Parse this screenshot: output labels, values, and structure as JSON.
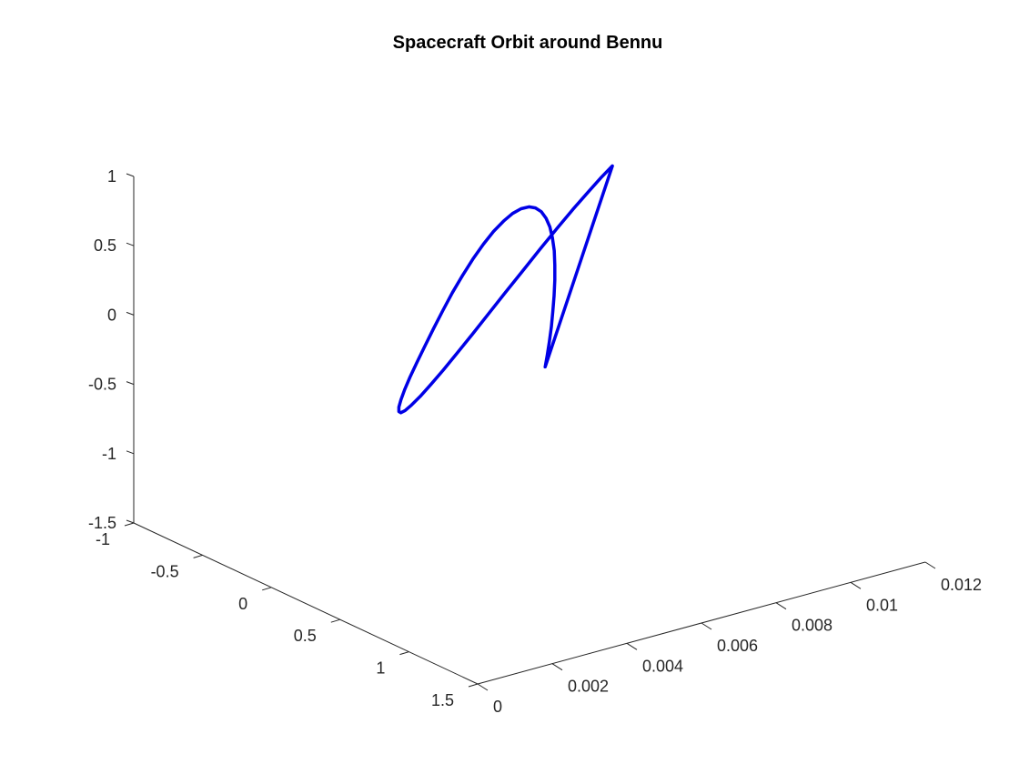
{
  "chart_data": {
    "type": "line",
    "projection": "3d",
    "title": "Spacecraft Orbit around Bennu",
    "xlabel": "",
    "ylabel": "",
    "zlabel": "",
    "grid": false,
    "legend": "none",
    "line_color": "#0000e6",
    "axes": {
      "x": {
        "lim": [
          0,
          0.012
        ],
        "ticks": [
          0,
          0.002,
          0.004,
          0.006,
          0.008,
          0.01,
          0.012
        ],
        "tick_labels": [
          "0",
          "0.002",
          "0.004",
          "0.006",
          "0.008",
          "0.01",
          "0.012"
        ]
      },
      "y": {
        "lim": [
          -1,
          1.5
        ],
        "ticks": [
          -1,
          -0.5,
          0,
          0.5,
          1,
          1.5
        ],
        "tick_labels": [
          "-1",
          "-0.5",
          "0",
          "0.5",
          "1",
          "1.5"
        ]
      },
      "z": {
        "lim": [
          -1.5,
          1
        ],
        "ticks": [
          -1.5,
          -1,
          -0.5,
          0,
          0.5,
          1
        ],
        "tick_labels": [
          "-1.5",
          "-1",
          "-0.5",
          "0",
          "0.5",
          "1"
        ]
      }
    },
    "series": [
      {
        "shape": "closed-orbit",
        "samples": 49,
        "x": [
          0.00865,
          0.00858,
          0.00847,
          0.00831,
          0.00811,
          0.00787,
          0.0076,
          0.00729,
          0.00697,
          0.00663,
          0.00627,
          0.00592,
          0.00556,
          0.00521,
          0.00487,
          0.00456,
          0.00427,
          0.00402,
          0.0038,
          0.00362,
          0.00348,
          0.00338,
          0.00333,
          0.00332,
          0.00335,
          0.00342,
          0.00353,
          0.00369,
          0.00389,
          0.00413,
          0.0044,
          0.00471,
          0.00503,
          0.00537,
          0.00573,
          0.00608,
          0.00644,
          0.00679,
          0.00713,
          0.00744,
          0.00773,
          0.00798,
          0.0082,
          0.00838,
          0.00852,
          0.00862,
          0.00867,
          0.00868,
          0.00865
        ],
        "y": [
          0.134,
          0.07,
          0.005,
          -0.061,
          -0.123,
          -0.181,
          -0.232,
          -0.276,
          -0.311,
          -0.336,
          -0.351,
          -0.355,
          -0.348,
          -0.33,
          -0.302,
          -0.264,
          -0.217,
          -0.163,
          -0.103,
          -0.039,
          0.026,
          0.092,
          0.156,
          0.216,
          0.271,
          0.319,
          0.359,
          0.39,
          0.411,
          0.422,
          0.422,
          0.411,
          0.39,
          0.359,
          0.319,
          0.271,
          0.216,
          0.156,
          0.092,
          0.026,
          -0.039,
          -0.103,
          -0.163,
          -0.217,
          -0.264,
          -0.302,
          -0.33,
          -0.348,
          -0.355
        ],
        "z": [
          0.969,
          0.86,
          0.732,
          0.59,
          0.437,
          0.279,
          0.12,
          -0.035,
          -0.182,
          -0.316,
          -0.434,
          -0.531,
          -0.606,
          -0.657,
          -0.682,
          -0.681,
          -0.654,
          -0.602,
          -0.526,
          -0.43,
          -0.316,
          -0.187,
          -0.048,
          0.098,
          0.247,
          0.394,
          0.534,
          0.662,
          0.775,
          0.869,
          0.941,
          0.988,
          1.01,
          1.005,
          0.974,
          0.918,
          0.839,
          0.738,
          0.62,
          0.487,
          0.343,
          0.193,
          0.04,
          -0.111,
          -0.257,
          -0.393,
          -0.516,
          -0.622,
          -0.708
        ]
      }
    ]
  }
}
